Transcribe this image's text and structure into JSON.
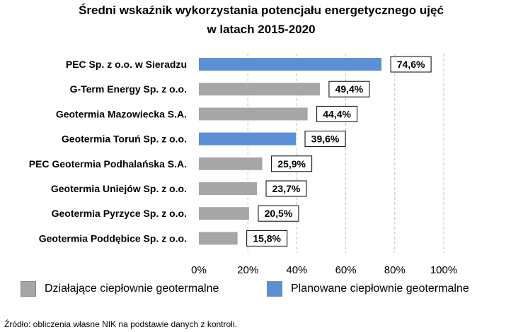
{
  "chart_data": {
    "type": "bar",
    "orientation": "horizontal",
    "title_lines": [
      "Średni wskaźnik wykorzystania potencjału energetycznego ujęć",
      "w latach 2015-2020"
    ],
    "categories": [
      "PEC Sp. z o.o. w Sieradzu",
      "G-Term Energy Sp. z o.o.",
      "Geotermia Mazowiecka S.A.",
      "Geotermia Toruń Sp. z o.o.",
      "PEC Geotermia Podhalańska S.A.",
      "Geotermia Uniejów Sp. z o.o.",
      "Geotermia Pyrzyce Sp. z o.o.",
      "Geotermia Poddębice Sp. z o.o."
    ],
    "values": [
      74.6,
      49.4,
      44.4,
      39.6,
      25.9,
      23.7,
      20.5,
      15.8
    ],
    "value_labels": [
      "74,6%",
      "49,4%",
      "44,4%",
      "39,6%",
      "25,9%",
      "23,7%",
      "20,5%",
      "15,8%"
    ],
    "bar_groups": [
      "planned",
      "existing",
      "existing",
      "planned",
      "existing",
      "existing",
      "existing",
      "existing"
    ],
    "xlim": [
      0,
      100
    ],
    "xticks": [
      0,
      20,
      40,
      60,
      80,
      100
    ],
    "xtick_labels": [
      "0%",
      "20%",
      "40%",
      "60%",
      "80%",
      "100%"
    ],
    "grid": "vertical-dashed",
    "colors": {
      "existing": "#a6a6a6",
      "planned": "#5b8fd6",
      "grid": "#bfbfbf"
    },
    "legend": {
      "position": "bottom",
      "entries": [
        {
          "key": "existing",
          "label": "Działające ciepłownie geotermalne"
        },
        {
          "key": "planned",
          "label": "Planowane ciepłownie geotermalne"
        }
      ]
    }
  },
  "source_note": "Źródło: obliczenia własne NIK na podstawie danych z kontroli."
}
